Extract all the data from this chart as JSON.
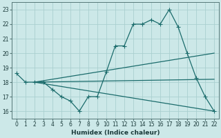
{
  "xlabel": "Humidex (Indice chaleur)",
  "bg_color": "#cce8e8",
  "grid_color": "#aacfcf",
  "line_color": "#1a6b6b",
  "xlim": [
    -0.5,
    22.5
  ],
  "ylim": [
    15.5,
    23.5
  ],
  "yticks": [
    16,
    17,
    18,
    19,
    20,
    21,
    22,
    23
  ],
  "xticks": [
    0,
    1,
    2,
    3,
    4,
    5,
    6,
    7,
    8,
    9,
    10,
    11,
    12,
    13,
    14,
    15,
    16,
    17,
    18,
    19,
    20,
    21,
    22
  ],
  "line1_x": [
    0,
    1,
    2,
    3,
    4,
    5,
    6,
    7,
    8,
    9,
    10,
    11,
    12,
    13,
    14,
    15,
    16,
    17,
    18,
    19,
    20,
    21,
    22
  ],
  "line1_y": [
    18.6,
    18.0,
    18.0,
    18.0,
    17.5,
    17.0,
    16.7,
    16.0,
    17.0,
    17.0,
    18.7,
    20.5,
    20.5,
    22.0,
    22.0,
    22.3,
    22.0,
    23.0,
    21.8,
    20.0,
    18.3,
    17.0,
    16.0
  ],
  "line2_x": [
    2,
    22
  ],
  "line2_y": [
    18.0,
    20.0
  ],
  "line3_x": [
    2,
    22
  ],
  "line3_y": [
    18.0,
    18.2
  ],
  "line4_x": [
    2,
    22
  ],
  "line4_y": [
    18.0,
    16.0
  ]
}
